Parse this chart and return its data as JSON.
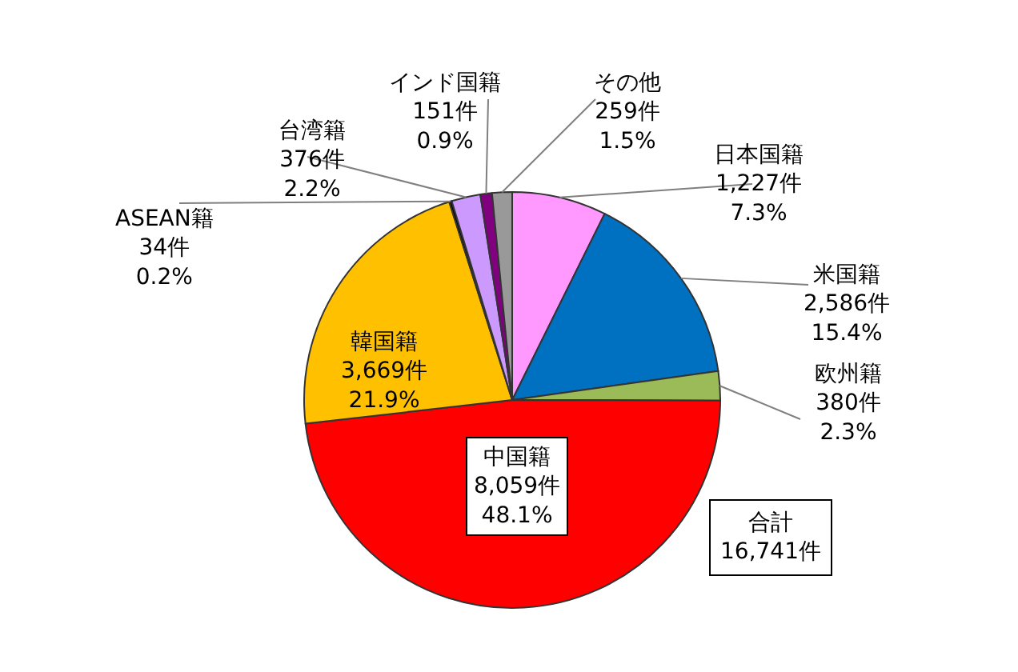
{
  "chart_data": {
    "type": "pie",
    "categories": [
      "日本国籍",
      "米国籍",
      "欧州籍",
      "中国籍",
      "韓国籍",
      "ASEAN籍",
      "台湾籍",
      "インド国籍",
      "その他"
    ],
    "values": [
      1227,
      2586,
      380,
      8059,
      3669,
      34,
      376,
      151,
      259
    ],
    "value_labels": [
      "1,227件\n7.3%",
      "2,586件\n15.4%",
      "380件\n2.3%",
      "8,059件\n48.1%",
      "3,669件\n21.9%",
      "34件\n0.2%",
      "376件\n2.2%",
      "151件\n0.9%",
      "259件\n1.5%"
    ],
    "colors": [
      "#ff99ff",
      "#0070c0",
      "#9bbb59",
      "#ff0000",
      "#ffc000",
      "#000000",
      "#cc99ff",
      "#800080",
      "#999999"
    ],
    "annotations": [
      "合計\n16,741件"
    ],
    "legend": false
  }
}
